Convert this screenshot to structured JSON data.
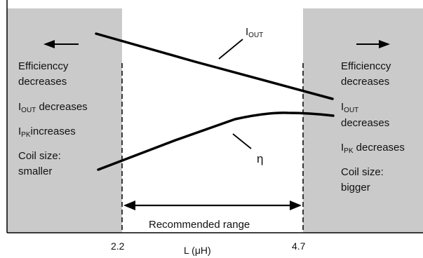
{
  "figure": {
    "x_axis": {
      "label_prefix": "L (",
      "label_mu": "μ",
      "label_suffix": "H)",
      "tick_low": "2.2",
      "tick_high": "4.7"
    },
    "range": {
      "label": "Recommended range"
    },
    "curves": {
      "iout": {
        "main": "I",
        "sub": "OUT"
      },
      "eta": {
        "symbol": "η"
      }
    },
    "left_panel": {
      "efficiency_line1": "Efficienccy",
      "efficiency_line2": "decreases",
      "iout_main": "I",
      "iout_sub": "OUT",
      "iout_text": " decreases",
      "ipk_main": "I",
      "ipk_sub": "PK",
      "ipk_text": "increases",
      "coil_line1": "Coil size:",
      "coil_line2": "smaller"
    },
    "right_panel": {
      "efficiency_line1": "Efficienccy",
      "efficiency_line2": "decreases",
      "iout_main": "I",
      "iout_sub": "OUT",
      "iout_text": "decreases",
      "ipk_main": "I",
      "ipk_sub": "PK",
      "ipk_text": " decreases",
      "coil_line1": "Coil size:",
      "coil_line2": "bigger"
    },
    "colors": {
      "panel_fill": "#cacaca",
      "line": "#000000",
      "frame": "#000000"
    }
  }
}
